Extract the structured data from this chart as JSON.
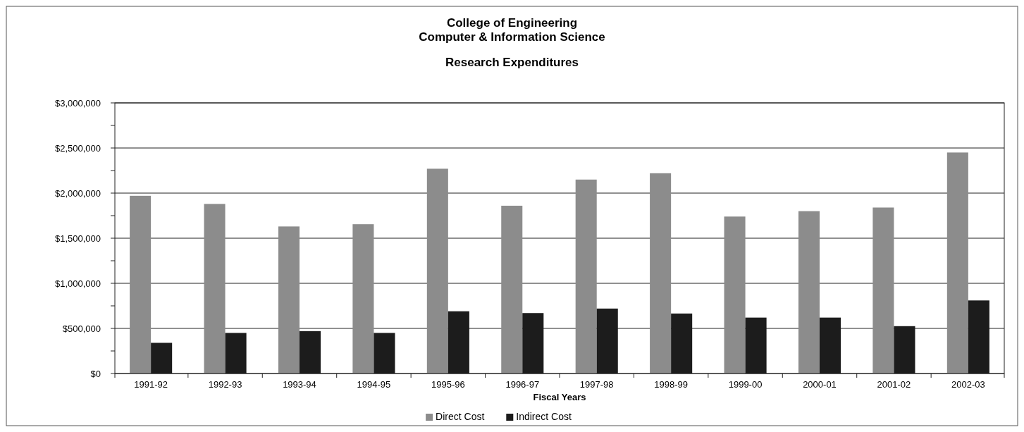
{
  "chart_data": {
    "type": "bar",
    "title": "College of Engineering\nComputer & Information Science",
    "subtitle": "Research Expenditures",
    "xlabel": "Fiscal Years",
    "categories": [
      "1991-92",
      "1992-93",
      "1993-94",
      "1994-95",
      "1995-96",
      "1996-97",
      "1997-98",
      "1998-99",
      "1999-00",
      "2000-01",
      "2001-02",
      "2002-03"
    ],
    "series": [
      {
        "name": "Direct Cost",
        "color": "#8c8c8c",
        "values": [
          1970000,
          1880000,
          1630000,
          1655000,
          2270000,
          1860000,
          2150000,
          2220000,
          1740000,
          1800000,
          1840000,
          2450000
        ]
      },
      {
        "name": "Indirect Cost",
        "color": "#1c1c1c",
        "values": [
          340000,
          450000,
          470000,
          450000,
          690000,
          670000,
          720000,
          665000,
          620000,
          620000,
          525000,
          810000
        ]
      }
    ],
    "ylim": [
      0,
      3000000
    ],
    "yticks": [
      {
        "value": 0,
        "label": "$0"
      },
      {
        "value": 250000,
        "label": null
      },
      {
        "value": 500000,
        "label": "$500,000"
      },
      {
        "value": 750000,
        "label": null
      },
      {
        "value": 1000000,
        "label": "$1,000,000"
      },
      {
        "value": 1250000,
        "label": null
      },
      {
        "value": 1500000,
        "label": "$1,500,000"
      },
      {
        "value": 1750000,
        "label": null
      },
      {
        "value": 2000000,
        "label": "$2,000,000"
      },
      {
        "value": 2250000,
        "label": null
      },
      {
        "value": 2500000,
        "label": "$2,500,000"
      },
      {
        "value": 2750000,
        "label": null
      },
      {
        "value": 3000000,
        "label": "$3,000,000"
      }
    ],
    "grid": "y",
    "legend": "bottom"
  }
}
